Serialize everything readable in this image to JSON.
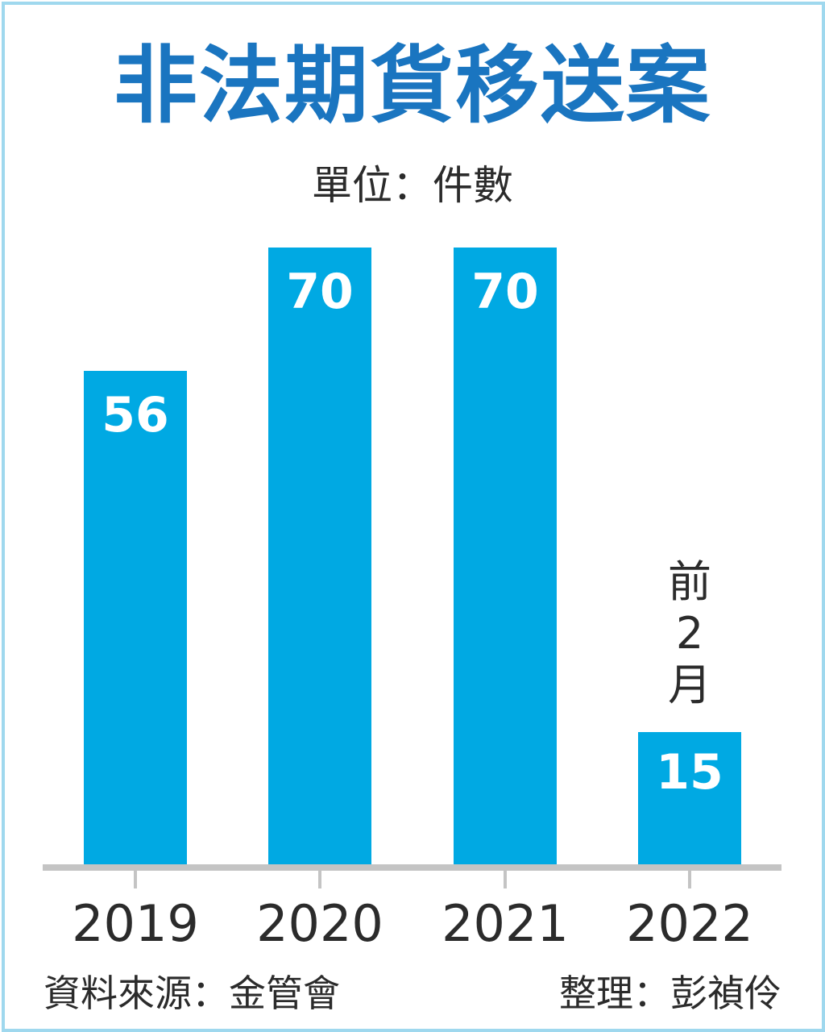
{
  "title": "非法期貨移送案",
  "unit_label": "單位：件數",
  "colors": {
    "title": "#1a75c0",
    "bar": "#00a9e3",
    "axis": "#c4c4c4",
    "frame": "#9fd8ee",
    "text": "#2b2b2b"
  },
  "annotation_2022": {
    "line1": "前",
    "line2": "2",
    "line3": "月"
  },
  "footer": {
    "source": "資料來源：金管會",
    "compiler": "整理：彭禎伶"
  },
  "chart_data": {
    "type": "bar",
    "title": "非法期貨移送案",
    "subtitle": "單位：件數",
    "categories": [
      "2019",
      "2020",
      "2021",
      "2022"
    ],
    "values": [
      56,
      70,
      70,
      15
    ],
    "data_labels": [
      "56",
      "70",
      "70",
      "15"
    ],
    "annotations": [
      {
        "category": "2022",
        "text": "前2月"
      }
    ],
    "xlabel": "",
    "ylabel": "件數",
    "ylim": [
      0,
      70
    ],
    "grid": false,
    "legend": null,
    "source": "資料來源：金管會",
    "credit": "整理：彭禎伶"
  }
}
